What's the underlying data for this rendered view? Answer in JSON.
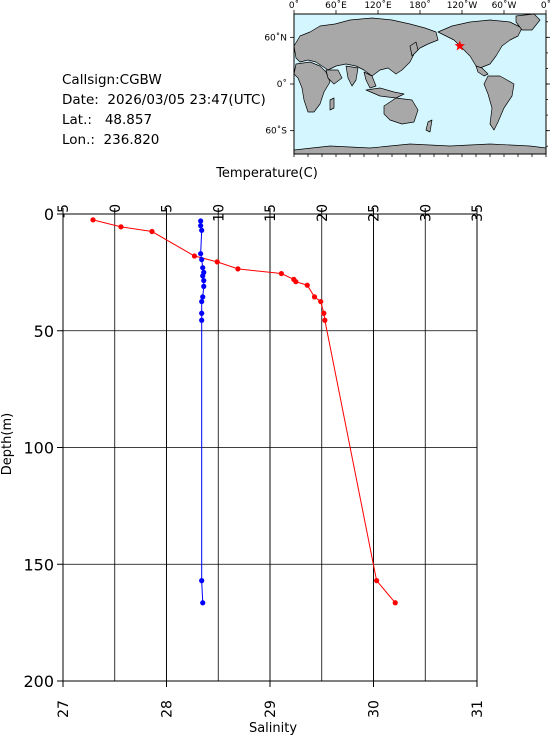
{
  "station": {
    "callsign_label": "Callsign:",
    "callsign": "CGBW",
    "date_label": "Date:",
    "date": "2026/03/05 23:47(UTC)",
    "lat_label": "Lat.:",
    "lat": "48.857",
    "lon_label": "Lon.:",
    "lon": "236.820"
  },
  "map": {
    "top_lon_labels": [
      "0˚",
      "60˚E",
      "120˚E",
      "180˚",
      "120˚W",
      "60˚W",
      "0˚"
    ],
    "left_lat_labels": [
      "60˚N",
      "0˚",
      "60˚S"
    ],
    "ocean_color": "#d4f7ff",
    "land_color": "#a8a8a8",
    "marker_color": "#ff0000",
    "marker_lon": 236.82,
    "marker_lat": 48.857
  },
  "chart_data": {
    "type": "scatter",
    "title": "",
    "top_axis_label": "Temperature(C)",
    "bottom_axis_label": "Salinity",
    "left_axis_label": "Depth(m)",
    "temperature_range": [
      -5,
      35
    ],
    "temperature_ticks": [
      "-5",
      "0",
      "5",
      "10",
      "15",
      "20",
      "25",
      "30",
      "35"
    ],
    "salinity_range": [
      27,
      31
    ],
    "salinity_ticks": [
      "27",
      "28",
      "29",
      "30",
      "31"
    ],
    "depth_range": [
      0,
      200
    ],
    "depth_ticks": [
      "0",
      "50",
      "100",
      "150",
      "200"
    ],
    "grid": true,
    "series": [
      {
        "name": "Temperature",
        "axis": "top",
        "color": "#ff0000",
        "points": [
          [
            -2.1,
            2.5
          ],
          [
            0.6,
            5.5
          ],
          [
            3.6,
            7.5
          ],
          [
            7.7,
            18
          ],
          [
            9.9,
            20.5
          ],
          [
            11.9,
            23.5
          ],
          [
            16.1,
            25.5
          ],
          [
            17.3,
            28
          ],
          [
            17.5,
            29
          ],
          [
            18.6,
            30.5
          ],
          [
            19.3,
            35.5
          ],
          [
            19.9,
            37.5
          ],
          [
            20.2,
            42.5
          ],
          [
            20.3,
            45.5
          ],
          [
            25.3,
            157
          ],
          [
            27.1,
            166.5
          ]
        ]
      },
      {
        "name": "Salinity",
        "axis": "bottom",
        "color": "#0000ff",
        "points": [
          [
            28.33,
            3
          ],
          [
            28.33,
            5
          ],
          [
            28.34,
            7
          ],
          [
            28.33,
            17
          ],
          [
            28.34,
            19.5
          ],
          [
            28.35,
            23
          ],
          [
            28.36,
            25
          ],
          [
            28.35,
            26.5
          ],
          [
            28.36,
            28.5
          ],
          [
            28.36,
            31
          ],
          [
            28.35,
            35.5
          ],
          [
            28.34,
            37.5
          ],
          [
            28.34,
            42.5
          ],
          [
            28.34,
            45.5
          ],
          [
            28.34,
            157
          ],
          [
            28.35,
            166.5
          ]
        ]
      }
    ]
  }
}
